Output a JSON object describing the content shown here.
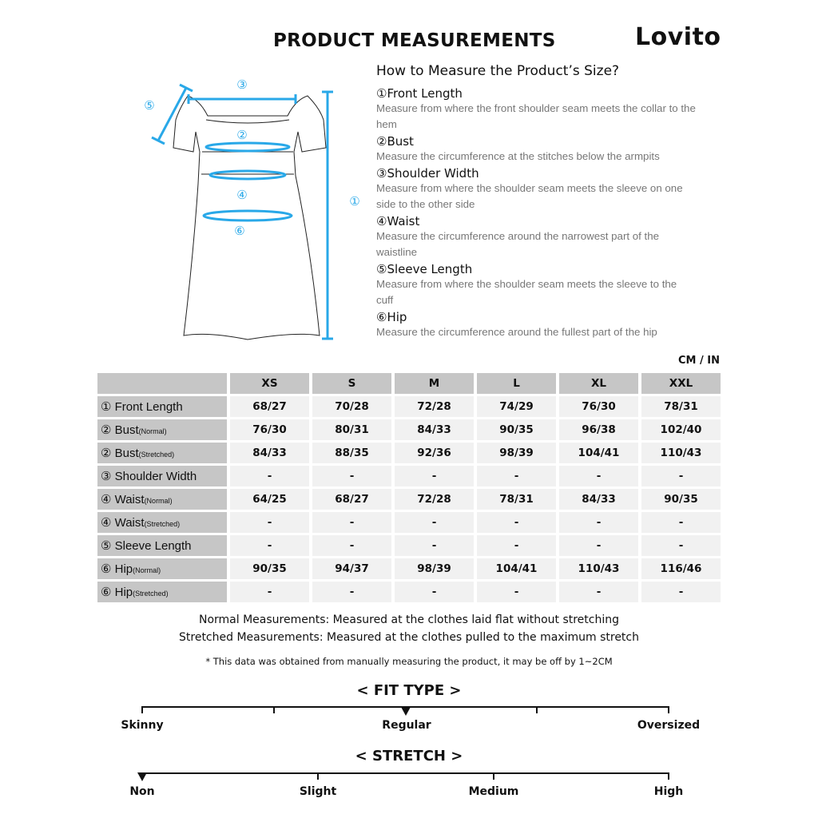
{
  "title": "PRODUCT MEASUREMENTS",
  "brand": "Lovito",
  "guide": {
    "heading": "How to Measure the Product’s Size?",
    "items": [
      {
        "label": "①Front Length",
        "desc": "Measure from where the front shoulder seam meets the collar to the hem"
      },
      {
        "label": "②Bust",
        "desc": "Measure the circumference at the stitches below the armpits"
      },
      {
        "label": "③Shoulder Width",
        "desc": "Measure from where the shoulder seam meets the sleeve on one side to the other side"
      },
      {
        "label": "④Waist",
        "desc": "Measure the circumference around the narrowest part of the waistline"
      },
      {
        "label": "⑤Sleeve Length",
        "desc": "Measure from where the shoulder seam meets the sleeve to the cuff"
      },
      {
        "label": "⑥Hip",
        "desc": "Measure the circumference around the fullest part of the hip"
      }
    ]
  },
  "diagram": {
    "markers": [
      "①",
      "②",
      "③",
      "④",
      "⑤",
      "⑥"
    ],
    "accent": "#29a8e8"
  },
  "unit": "CM / IN",
  "table": {
    "sizes": [
      "XS",
      "S",
      "M",
      "L",
      "XL",
      "XXL"
    ],
    "rows": [
      {
        "label": "① Front Length",
        "sub": "",
        "values": [
          "68/27",
          "70/28",
          "72/28",
          "74/29",
          "76/30",
          "78/31"
        ]
      },
      {
        "label": "② Bust",
        "sub": "(Normal)",
        "values": [
          "76/30",
          "80/31",
          "84/33",
          "90/35",
          "96/38",
          "102/40"
        ]
      },
      {
        "label": "② Bust",
        "sub": "(Stretched)",
        "values": [
          "84/33",
          "88/35",
          "92/36",
          "98/39",
          "104/41",
          "110/43"
        ]
      },
      {
        "label": "③ Shoulder Width",
        "sub": "",
        "values": [
          "-",
          "-",
          "-",
          "-",
          "-",
          "-"
        ]
      },
      {
        "label": "④ Waist",
        "sub": "(Normal)",
        "values": [
          "64/25",
          "68/27",
          "72/28",
          "78/31",
          "84/33",
          "90/35"
        ]
      },
      {
        "label": "④ Waist",
        "sub": "(Stretched)",
        "values": [
          "-",
          "-",
          "-",
          "-",
          "-",
          "-"
        ]
      },
      {
        "label": "⑤ Sleeve Length",
        "sub": "",
        "values": [
          "-",
          "-",
          "-",
          "-",
          "-",
          "-"
        ]
      },
      {
        "label": "⑥ Hip",
        "sub": "(Normal)",
        "values": [
          "90/35",
          "94/37",
          "98/39",
          "104/41",
          "110/43",
          "116/46"
        ]
      },
      {
        "label": "⑥ Hip",
        "sub": "(Stretched)",
        "values": [
          "-",
          "-",
          "-",
          "-",
          "-",
          "-"
        ]
      }
    ]
  },
  "notes": {
    "normal": "Normal Measurements: Measured at the clothes laid flat without stretching",
    "stretched": "Stretched  Measurements: Measured at the clothes pulled to the maximum stretch",
    "disclaimer": "* This data was obtained from manually measuring the product, it may be off by 1~2CM"
  },
  "fit_type": {
    "title": "< FIT TYPE >",
    "labels": [
      "Skinny",
      "Regular",
      "Oversized"
    ],
    "selected": "Regular"
  },
  "stretch": {
    "title": "< STRETCH >",
    "labels": [
      "Non",
      "Slight",
      "Medium",
      "High"
    ],
    "selected": "Non"
  }
}
